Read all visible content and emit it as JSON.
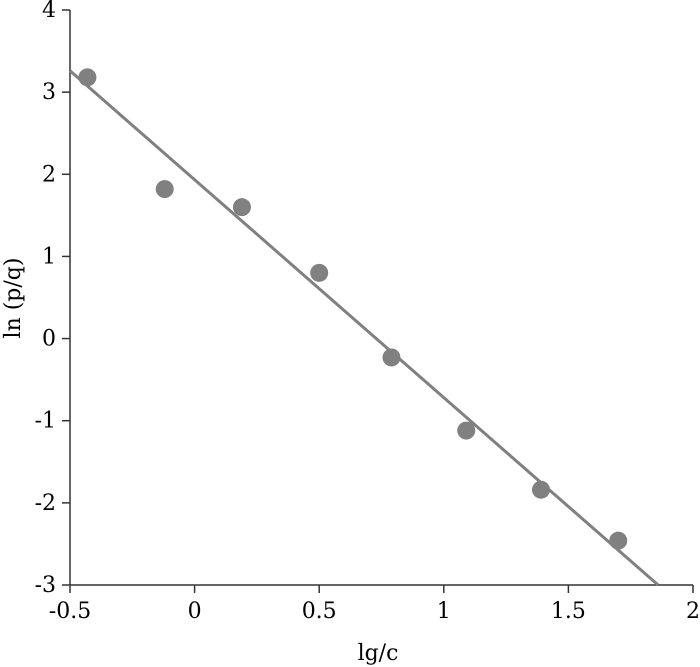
{
  "chart_data": {
    "type": "scatter",
    "title": "",
    "xlabel": "lg/c",
    "ylabel": "ln (p/q)",
    "xlim": [
      -0.5,
      2
    ],
    "ylim": [
      -3,
      4
    ],
    "xticks": [
      -0.5,
      0,
      0.5,
      1,
      1.5,
      2
    ],
    "yticks": [
      -3,
      -2,
      -1,
      0,
      1,
      2,
      3,
      4
    ],
    "xtick_labels": [
      "-0.5",
      "0",
      "0.5",
      "1",
      "1.5",
      "2"
    ],
    "ytick_labels": [
      "-3",
      "-2",
      "-1",
      "0",
      "1",
      "2",
      "3",
      "4"
    ],
    "grid": false,
    "legend": "none",
    "series": [
      {
        "type": "scatter",
        "x": [
          -0.43,
          -0.12,
          0.19,
          0.5,
          0.79,
          1.09,
          1.39,
          1.7
        ],
        "y": [
          3.18,
          1.82,
          1.6,
          0.8,
          -0.23,
          -1.12,
          -1.84,
          -2.46
        ],
        "color": "#808080"
      },
      {
        "type": "line",
        "x": [
          -0.5,
          1.86
        ],
        "y": [
          3.26,
          -3.0
        ],
        "color": "#808080"
      }
    ]
  }
}
